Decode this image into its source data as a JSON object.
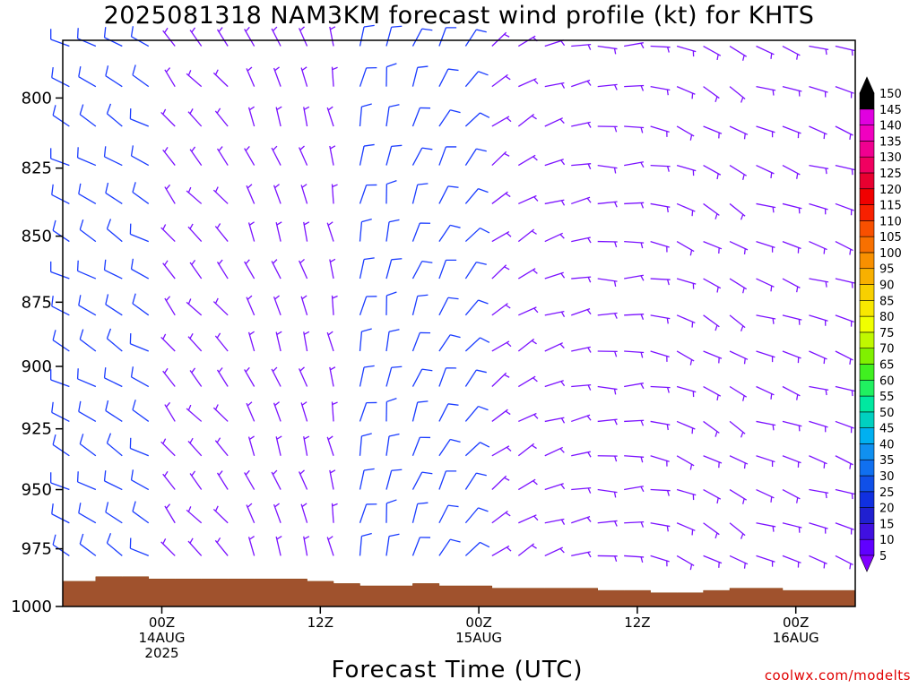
{
  "title": "2025081318 NAM3KM forecast wind profile (kt) for KHTS",
  "x_axis_title": "Forecast Time (UTC)",
  "credit": "coolwx.com/modelts",
  "colorbar": {
    "min_label": "5",
    "max_label": "150",
    "labels": [
      "5",
      "10",
      "15",
      "20",
      "25",
      "30",
      "35",
      "40",
      "45",
      "50",
      "55",
      "60",
      "65",
      "70",
      "75",
      "80",
      "85",
      "90",
      "95",
      "100",
      "105",
      "110",
      "115",
      "120",
      "125",
      "130",
      "135",
      "140",
      "145",
      "150"
    ],
    "colors": [
      "#8000ff",
      "#6000ff",
      "#4010e0",
      "#2020d0",
      "#1030e0",
      "#1050e8",
      "#1070f0",
      "#1090f0",
      "#00b0f0",
      "#00d0c0",
      "#00e8a0",
      "#20f060",
      "#40f020",
      "#80f000",
      "#c0f800",
      "#f0ff00",
      "#f8e800",
      "#f8d000",
      "#f8b000",
      "#f89000",
      "#f87000",
      "#f85000",
      "#f82000",
      "#f00000",
      "#e80030",
      "#f00060",
      "#f00090",
      "#f000c0",
      "#e000e0",
      "#000000"
    ]
  },
  "chart_data": {
    "type": "wind barb time-height section",
    "title": "2025081318 NAM3KM forecast wind profile (kt) for KHTS",
    "xlabel": "Forecast Time (UTC)",
    "ylabel": "",
    "units": "kt",
    "y_scale": "pressure (hPa), inverted",
    "ylim": [
      1000,
      780
    ],
    "y_ticks": [
      800,
      825,
      850,
      875,
      900,
      925,
      950,
      975,
      1000
    ],
    "x_range_hours": [
      -7.5,
      52.5
    ],
    "x_ticks": [
      {
        "hour": 0,
        "label": [
          "00Z",
          "14AUG",
          "2025"
        ]
      },
      {
        "hour": 12,
        "label": [
          "12Z"
        ]
      },
      {
        "hour": 24,
        "label": [
          "00Z",
          "15AUG"
        ]
      },
      {
        "hour": 36,
        "label": [
          "12Z"
        ]
      },
      {
        "hour": 48,
        "label": [
          "00Z",
          "16AUG"
        ]
      }
    ],
    "terrain_surface_pressure": [
      {
        "hour": -6,
        "p": 989
      },
      {
        "hour": -4,
        "p": 987
      },
      {
        "hour": -2,
        "p": 987
      },
      {
        "hour": 0,
        "p": 988
      },
      {
        "hour": 2,
        "p": 988
      },
      {
        "hour": 4,
        "p": 988
      },
      {
        "hour": 6,
        "p": 988
      },
      {
        "hour": 8,
        "p": 988
      },
      {
        "hour": 10,
        "p": 988
      },
      {
        "hour": 12,
        "p": 989
      },
      {
        "hour": 14,
        "p": 990
      },
      {
        "hour": 16,
        "p": 991
      },
      {
        "hour": 18,
        "p": 991
      },
      {
        "hour": 20,
        "p": 990
      },
      {
        "hour": 22,
        "p": 991
      },
      {
        "hour": 24,
        "p": 991
      },
      {
        "hour": 26,
        "p": 992
      },
      {
        "hour": 28,
        "p": 992
      },
      {
        "hour": 30,
        "p": 992
      },
      {
        "hour": 32,
        "p": 992
      },
      {
        "hour": 34,
        "p": 993
      },
      {
        "hour": 36,
        "p": 993
      },
      {
        "hour": 38,
        "p": 994
      },
      {
        "hour": 40,
        "p": 994
      },
      {
        "hour": 42,
        "p": 993
      },
      {
        "hour": 44,
        "p": 992
      },
      {
        "hour": 46,
        "p": 992
      },
      {
        "hour": 48,
        "p": 993
      },
      {
        "hour": 50,
        "p": 993
      },
      {
        "hour": 52,
        "p": 993
      }
    ],
    "barb_levels_hpa": [
      782,
      796,
      810,
      824,
      838,
      852,
      866,
      880,
      894,
      908,
      922,
      936,
      950,
      964,
      978
    ],
    "wind_by_time": [
      {
        "hour": -7,
        "dir": 300,
        "spd": 10
      },
      {
        "hour": -5,
        "dir": 300,
        "spd": 10
      },
      {
        "hour": -3,
        "dir": 300,
        "spd": 10
      },
      {
        "hour": -1,
        "dir": 300,
        "spd": 10
      },
      {
        "hour": 1,
        "dir": 320,
        "spd": 5
      },
      {
        "hour": 3,
        "dir": 320,
        "spd": 5
      },
      {
        "hour": 5,
        "dir": 320,
        "spd": 5
      },
      {
        "hour": 7,
        "dir": 340,
        "spd": 5
      },
      {
        "hour": 9,
        "dir": 340,
        "spd": 5
      },
      {
        "hour": 11,
        "dir": 340,
        "spd": 5
      },
      {
        "hour": 13,
        "dir": 350,
        "spd": 5
      },
      {
        "hour": 15,
        "dir": 10,
        "spd": 10
      },
      {
        "hour": 17,
        "dir": 10,
        "spd": 10
      },
      {
        "hour": 19,
        "dir": 20,
        "spd": 10
      },
      {
        "hour": 21,
        "dir": 30,
        "spd": 10
      },
      {
        "hour": 23,
        "dir": 40,
        "spd": 10
      },
      {
        "hour": 25,
        "dir": 50,
        "spd": 5
      },
      {
        "hour": 27,
        "dir": 60,
        "spd": 5
      },
      {
        "hour": 29,
        "dir": 70,
        "spd": 5
      },
      {
        "hour": 31,
        "dir": 80,
        "spd": 5
      },
      {
        "hour": 33,
        "dir": 90,
        "spd": 5
      },
      {
        "hour": 35,
        "dir": 90,
        "spd": 5
      },
      {
        "hour": 37,
        "dir": 100,
        "spd": 5
      },
      {
        "hour": 39,
        "dir": 110,
        "spd": 5
      },
      {
        "hour": 41,
        "dir": 120,
        "spd": 5
      },
      {
        "hour": 43,
        "dir": 120,
        "spd": 5
      },
      {
        "hour": 45,
        "dir": 110,
        "spd": 5
      },
      {
        "hour": 47,
        "dir": 110,
        "spd": 5
      },
      {
        "hour": 49,
        "dir": 110,
        "spd": 5
      },
      {
        "hour": 51,
        "dir": 110,
        "spd": 5
      }
    ],
    "low_wind_threshold_kt": 10
  }
}
